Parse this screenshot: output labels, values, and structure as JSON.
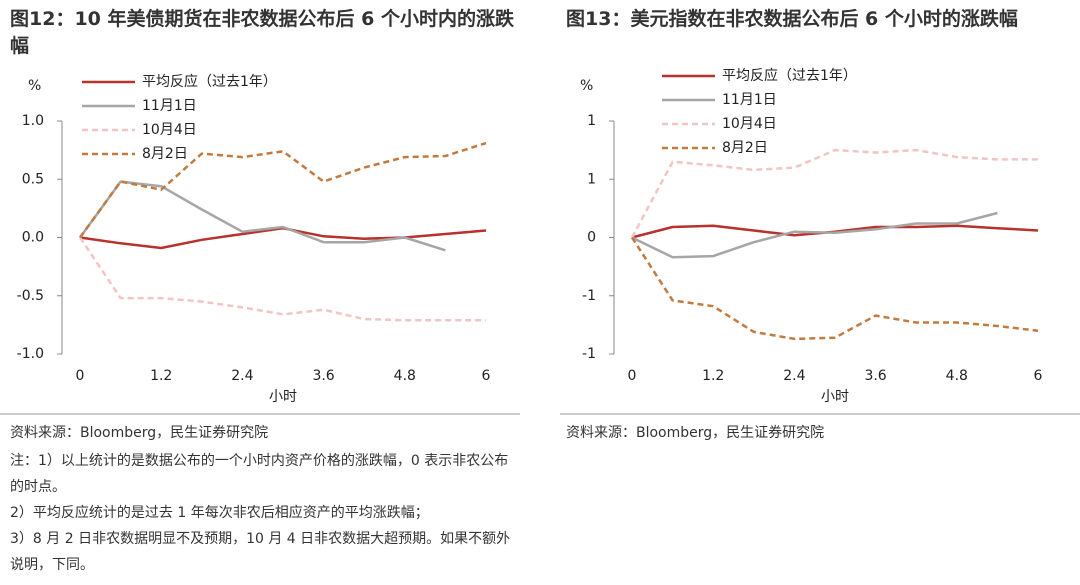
{
  "chart_data": [
    {
      "type": "line",
      "title": "图12：10 年美债期货在非农数据公布后 6 个小时内的涨跌幅",
      "y_label": "%",
      "x_label": "小时",
      "x": [
        0,
        0.6,
        1.2,
        1.8,
        2.4,
        3.0,
        3.6,
        4.2,
        4.8,
        5.4,
        6.0
      ],
      "series": [
        {
          "name": "平均反应（过去1年）",
          "color": "#b8312b",
          "dash": false,
          "values": [
            0,
            -0.05,
            -0.09,
            -0.02,
            0.03,
            0.08,
            0.01,
            -0.01,
            0,
            0.03,
            0.06
          ]
        },
        {
          "name": "11月1日",
          "color": "#a6a6a6",
          "dash": false,
          "values": [
            0,
            0.48,
            0.44,
            0.24,
            0.05,
            0.09,
            -0.04,
            -0.04,
            0,
            -0.11,
            null
          ]
        },
        {
          "name": "10月4日",
          "color": "#f2c4c4",
          "dash": true,
          "values": [
            0,
            -0.52,
            -0.52,
            -0.55,
            -0.6,
            -0.66,
            -0.62,
            -0.7,
            -0.71,
            -0.71,
            -0.71
          ]
        },
        {
          "name": "8月2日",
          "color": "#c27a3e",
          "dash": true,
          "values": [
            0,
            0.48,
            0.41,
            0.72,
            0.69,
            0.74,
            0.48,
            0.6,
            0.69,
            0.7,
            0.81
          ]
        }
      ],
      "xlim": [
        0,
        6
      ],
      "xticks": [
        0,
        1.2,
        2.4,
        3.6,
        4.8,
        6
      ],
      "ylim": [
        -1,
        1
      ],
      "yticks": [
        {
          "value": 1,
          "label": "1.0"
        },
        0.5,
        {
          "value": 0,
          "label": "0.0"
        },
        -0.5,
        {
          "value": -1,
          "label": "-1.0"
        }
      ],
      "legend": "upper left",
      "source": "资料来源：Bloomberg，民生证券研究院",
      "notes": [
        "注：1）以上统计的是数据公布的一个小时内资产价格的涨跌幅，0 表示非农公布的时点。",
        "2）平均反应统计的是过去 1 年每次非农后相应资产的平均涨跌幅；",
        "3）8 月 2 日非农数据明显不及预期，10 月 4 日非农数据大超预期。如果不额外说明，下同。"
      ]
    },
    {
      "type": "line",
      "title": "图13：美元指数在非农数据公布后 6 个小时的涨跌幅",
      "y_label": "%",
      "x_label": "小时",
      "x": [
        0,
        0.6,
        1.2,
        1.8,
        2.4,
        3.0,
        3.6,
        4.2,
        4.8,
        5.4,
        6.0
      ],
      "series": [
        {
          "name": "平均反应（过去1年）",
          "color": "#b8312b",
          "dash": false,
          "values": [
            0,
            0.09,
            0.1,
            0.06,
            0.02,
            0.05,
            0.09,
            0.09,
            0.1,
            0.08,
            0.06
          ]
        },
        {
          "name": "11月1日",
          "color": "#a6a6a6",
          "dash": false,
          "values": [
            0,
            -0.17,
            -0.16,
            -0.04,
            0.05,
            0.04,
            0.07,
            0.12,
            0.12,
            0.21,
            null
          ]
        },
        {
          "name": "10月4日",
          "color": "#f2c4c4",
          "dash": true,
          "values": [
            0,
            0.65,
            0.62,
            0.58,
            0.6,
            0.75,
            0.73,
            0.75,
            0.69,
            0.67,
            0.67
          ]
        },
        {
          "name": "8月2日",
          "color": "#c27a3e",
          "dash": true,
          "values": [
            0,
            -0.54,
            -0.59,
            -0.81,
            -0.87,
            -0.86,
            -0.67,
            -0.73,
            -0.73,
            -0.76,
            -0.8
          ]
        }
      ],
      "xlim": [
        0,
        6
      ],
      "xticks": [
        0,
        1.2,
        2.4,
        3.6,
        4.8,
        6
      ],
      "ylim": [
        -1,
        1
      ],
      "yticks": [
        {
          "value": 1,
          "label": "1"
        },
        {
          "value": 0.5,
          "label": "1"
        },
        0,
        {
          "value": -0.5,
          "label": "-1"
        },
        -1
      ],
      "legend": "upper left",
      "source": "资料来源：Bloomberg，民生证券研究院"
    }
  ]
}
